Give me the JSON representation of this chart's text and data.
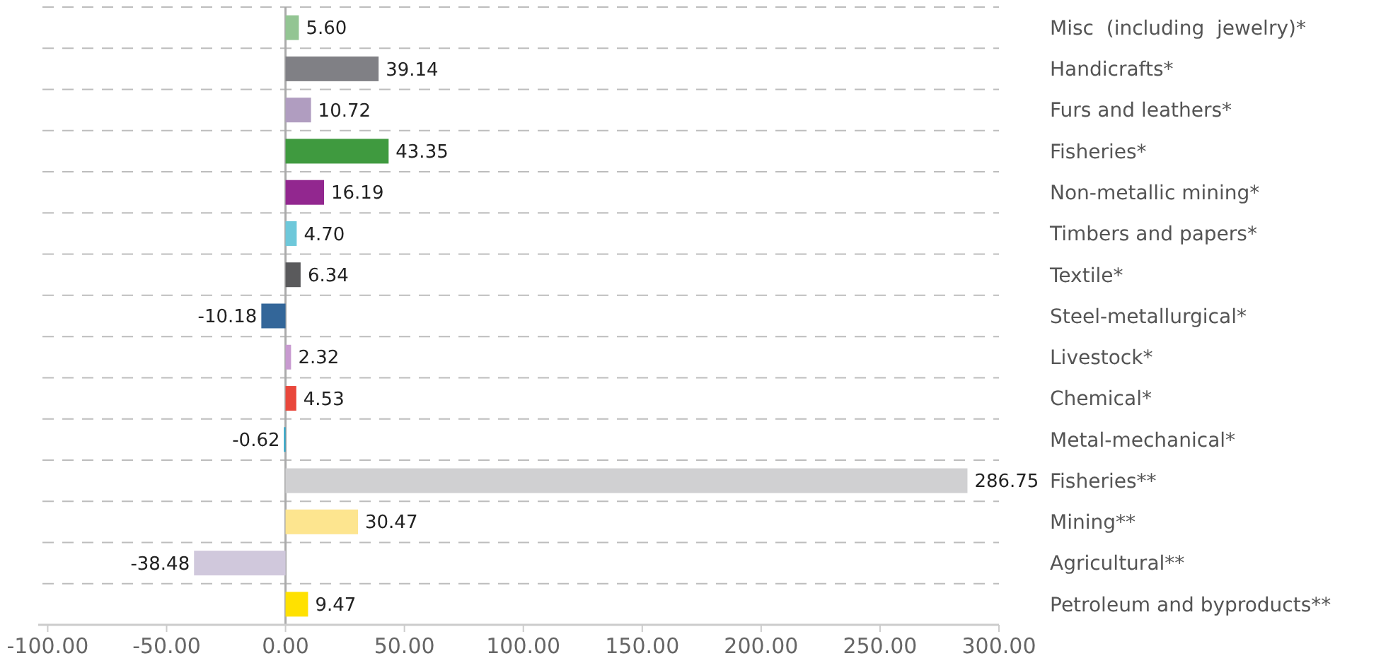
{
  "chart_data": {
    "type": "bar",
    "orientation": "horizontal",
    "categories": [
      "Misc  (including  jewelry)*",
      "Handicrafts*",
      "Furs and leathers*",
      "Fisheries*",
      "Non-metallic mining*",
      "Timbers and papers*",
      "Textile*",
      "Steel-metallurgical*",
      "Livestock*",
      "Chemical*",
      "Metal-mechanical*",
      "Fisheries**",
      "Mining**",
      "Agricultural**",
      "Petroleum and byproducts**"
    ],
    "values": [
      5.6,
      39.14,
      10.72,
      43.35,
      16.19,
      4.7,
      6.34,
      -10.18,
      2.32,
      4.53,
      -0.62,
      286.75,
      30.47,
      -38.48,
      9.47
    ],
    "colors": [
      "#93c593",
      "#808085",
      "#b09dc0",
      "#3f9a3f",
      "#92278f",
      "#6ec8da",
      "#5a5a5c",
      "#336699",
      "#c89ad0",
      "#e9473b",
      "#1a9bc0",
      "#d0d0d2",
      "#fde58f",
      "#d0c8dc",
      "#ffe100"
    ],
    "value_labels": [
      "5.60",
      "39.14",
      "10.72",
      "43.35",
      "16.19",
      "4.70",
      "6.34",
      "-10.18",
      "2.32",
      "4.53",
      "-0.62",
      "286.75",
      "30.47",
      "-38.48",
      "9.47"
    ],
    "xlim": [
      -104,
      300
    ],
    "xticks": [
      {
        "value": -100,
        "label": "-100.00"
      },
      {
        "value": -50,
        "label": "-50.00"
      },
      {
        "value": 0,
        "label": "0.00"
      },
      {
        "value": 50,
        "label": "50.00"
      },
      {
        "value": 100,
        "label": "100.00"
      },
      {
        "value": 150,
        "label": "150.00"
      },
      {
        "value": 200,
        "label": "200.00"
      },
      {
        "value": 250,
        "label": "250.00"
      },
      {
        "value": 300,
        "label": "300.00"
      }
    ],
    "grid": "y"
  }
}
